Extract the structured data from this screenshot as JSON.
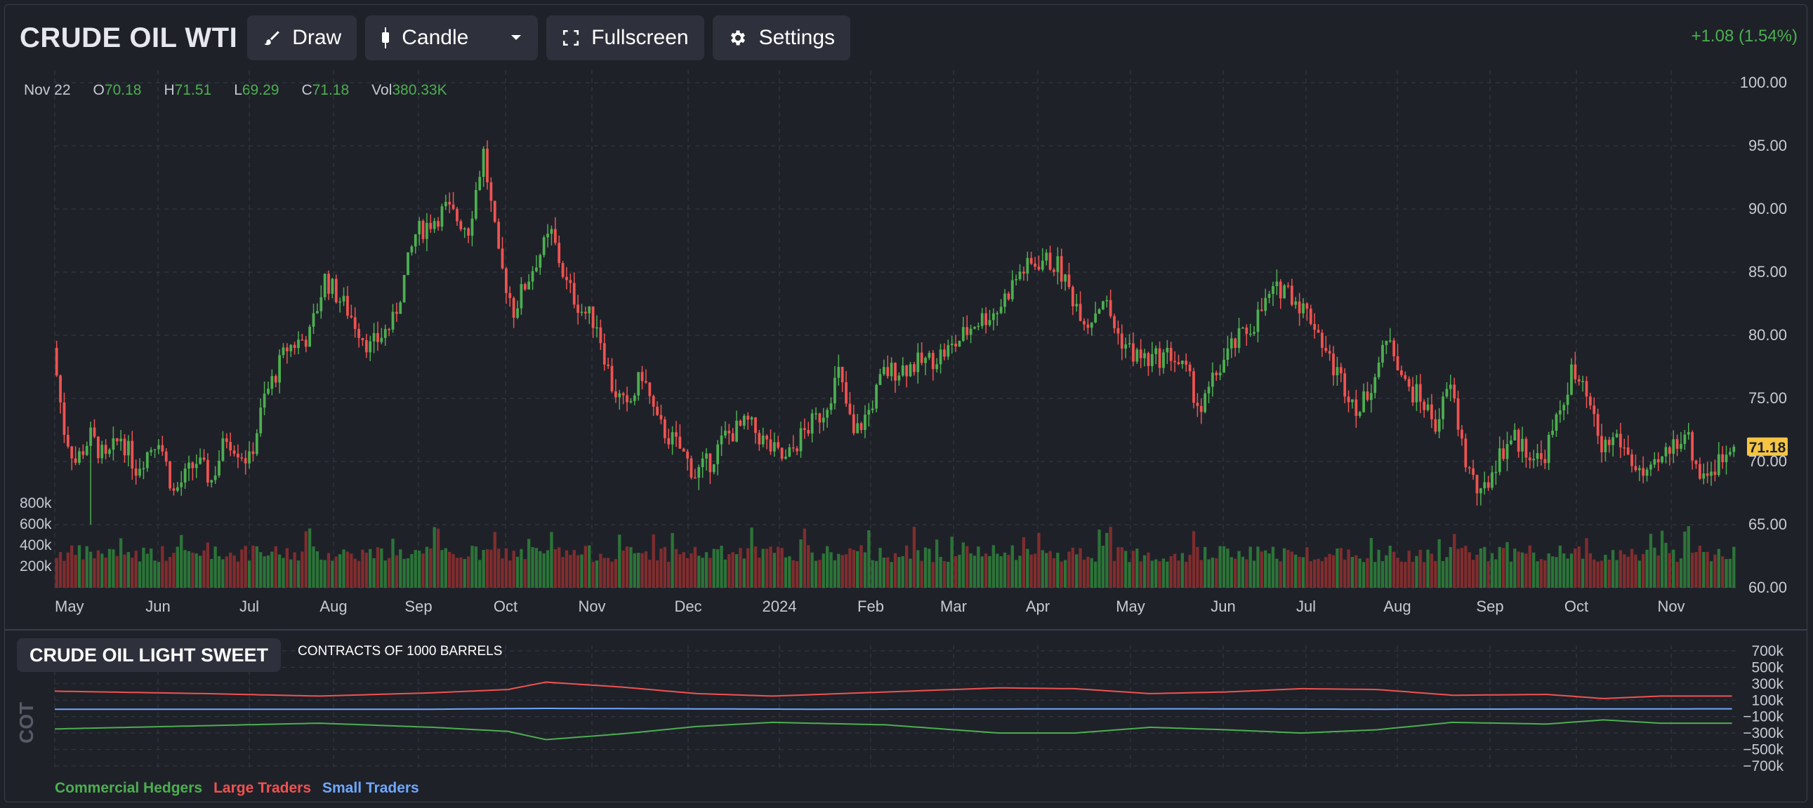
{
  "header": {
    "title": "CRUDE OIL WTI",
    "draw_label": "Draw",
    "chart_type_label": "Candle",
    "fullscreen_label": "Fullscreen",
    "settings_label": "Settings",
    "change": "+1.08 (1.54%)"
  },
  "ohlc": {
    "date": "Nov 22",
    "o_label": "O",
    "o": "70.18",
    "h_label": "H",
    "h": "71.51",
    "l_label": "L",
    "l": "69.29",
    "c_label": "C",
    "c": "71.18",
    "vol_label": "Vol",
    "vol": "380.33K"
  },
  "colors": {
    "up": "#4caf50",
    "down": "#ef5350",
    "bg": "#1f2129",
    "grid": "#363a45",
    "last_price_bg": "#f5c542",
    "small": "#6ea8fe"
  },
  "cot": {
    "title": "CRUDE OIL LIGHT SWEET",
    "subtitle": "CONTRACTS OF 1000 BARRELS",
    "side_label": "COT",
    "legend": [
      "Commercial Hedgers",
      "Large Traders",
      "Small Traders"
    ]
  },
  "chart_data": [
    {
      "type": "candlestick",
      "title": "CRUDE OIL WTI",
      "ylim": [
        60,
        100
      ],
      "y_ticks": [
        "100.00",
        "95.00",
        "90.00",
        "85.00",
        "80.00",
        "75.00",
        "70.00",
        "65.00",
        "60.00"
      ],
      "x_ticks": [
        "May",
        "Jun",
        "Jul",
        "Aug",
        "Sep",
        "Oct",
        "Nov",
        "Dec",
        "2024",
        "Feb",
        "Mar",
        "Apr",
        "May",
        "Jun",
        "Jul",
        "Aug",
        "Sep",
        "Oct",
        "Nov"
      ],
      "last_price": "71.18",
      "price_path": [
        [
          0,
          79
        ],
        [
          3,
          72.5
        ],
        [
          6,
          70
        ],
        [
          10,
          72
        ],
        [
          14,
          70
        ],
        [
          18,
          72
        ],
        [
          22,
          69.5
        ],
        [
          28,
          72
        ],
        [
          32,
          67.5
        ],
        [
          38,
          70
        ],
        [
          42,
          68.5
        ],
        [
          46,
          72
        ],
        [
          52,
          70
        ],
        [
          56,
          75
        ],
        [
          62,
          79
        ],
        [
          68,
          80
        ],
        [
          72,
          84.5
        ],
        [
          78,
          82
        ],
        [
          84,
          79
        ],
        [
          90,
          81
        ],
        [
          96,
          88
        ],
        [
          104,
          90
        ],
        [
          110,
          88.5
        ],
        [
          114,
          94.5
        ],
        [
          118,
          86
        ],
        [
          122,
          82
        ],
        [
          128,
          86
        ],
        [
          132,
          88
        ],
        [
          136,
          84
        ],
        [
          140,
          82
        ],
        [
          144,
          81
        ],
        [
          148,
          76
        ],
        [
          152,
          74
        ],
        [
          156,
          77
        ],
        [
          160,
          73
        ],
        [
          166,
          71
        ],
        [
          170,
          69
        ],
        [
          174,
          70
        ],
        [
          178,
          72
        ],
        [
          184,
          73
        ],
        [
          190,
          71
        ],
        [
          194,
          70
        ],
        [
          198,
          72
        ],
        [
          204,
          74
        ],
        [
          208,
          77
        ],
        [
          212,
          72
        ],
        [
          216,
          74
        ],
        [
          220,
          77
        ],
        [
          226,
          77.5
        ],
        [
          232,
          78
        ],
        [
          238,
          79
        ],
        [
          244,
          81
        ],
        [
          250,
          82
        ],
        [
          256,
          85
        ],
        [
          262,
          86
        ],
        [
          266,
          85.5
        ],
        [
          270,
          83
        ],
        [
          274,
          81
        ],
        [
          278,
          83
        ],
        [
          282,
          80
        ],
        [
          286,
          78.5
        ],
        [
          290,
          78
        ],
        [
          296,
          78.5
        ],
        [
          300,
          77
        ],
        [
          304,
          74
        ],
        [
          308,
          77
        ],
        [
          312,
          79
        ],
        [
          318,
          81
        ],
        [
          322,
          83
        ],
        [
          326,
          84
        ],
        [
          330,
          82.5
        ],
        [
          334,
          81
        ],
        [
          338,
          78
        ],
        [
          342,
          76
        ],
        [
          346,
          74
        ],
        [
          350,
          77
        ],
        [
          354,
          80
        ],
        [
          358,
          76
        ],
        [
          362,
          75
        ],
        [
          366,
          73
        ],
        [
          370,
          76
        ],
        [
          374,
          70
        ],
        [
          378,
          67
        ],
        [
          382,
          70
        ],
        [
          386,
          72
        ],
        [
          390,
          71
        ],
        [
          394,
          70
        ],
        [
          398,
          73
        ],
        [
          402,
          77
        ],
        [
          406,
          75
        ],
        [
          410,
          71
        ],
        [
          414,
          72
        ],
        [
          418,
          70
        ],
        [
          422,
          68.5
        ],
        [
          428,
          71
        ],
        [
          432,
          72.5
        ],
        [
          436,
          69
        ],
        [
          440,
          69.5
        ],
        [
          444,
          71.18
        ]
      ],
      "volume_ylim": [
        0,
        800000
      ],
      "volume_ticks": [
        "800k",
        "600k",
        "400k",
        "200k"
      ],
      "bar_count": 445
    },
    {
      "type": "line",
      "title": "CRUDE OIL LIGHT SWEET",
      "ylim": [
        -700000,
        700000
      ],
      "y_ticks": [
        "700k",
        "500k",
        "300k",
        "100k",
        "−100k",
        "−300k",
        "−500k",
        "−700k"
      ],
      "series": [
        {
          "name": "Large Traders",
          "path": [
            [
              0,
              210000
            ],
            [
              40,
              180000
            ],
            [
              70,
              150000
            ],
            [
              100,
              190000
            ],
            [
              120,
              230000
            ],
            [
              130,
              320000
            ],
            [
              150,
              260000
            ],
            [
              170,
              180000
            ],
            [
              190,
              150000
            ],
            [
              220,
              200000
            ],
            [
              250,
              250000
            ],
            [
              270,
              240000
            ],
            [
              290,
              180000
            ],
            [
              310,
              200000
            ],
            [
              330,
              240000
            ],
            [
              350,
              230000
            ],
            [
              370,
              160000
            ],
            [
              395,
              170000
            ],
            [
              410,
              120000
            ],
            [
              425,
              150000
            ],
            [
              444,
              150000
            ]
          ]
        },
        {
          "name": "Small Traders",
          "path": [
            [
              0,
              -10000
            ],
            [
              100,
              -10000
            ],
            [
              130,
              0
            ],
            [
              200,
              -10000
            ],
            [
              300,
              -5000
            ],
            [
              350,
              -10000
            ],
            [
              444,
              -5000
            ]
          ]
        },
        {
          "name": "Commercial Hedgers",
          "path": [
            [
              0,
              -250000
            ],
            [
              40,
              -210000
            ],
            [
              70,
              -180000
            ],
            [
              100,
              -230000
            ],
            [
              120,
              -280000
            ],
            [
              130,
              -380000
            ],
            [
              150,
              -310000
            ],
            [
              170,
              -220000
            ],
            [
              190,
              -170000
            ],
            [
              220,
              -200000
            ],
            [
              250,
              -300000
            ],
            [
              270,
              -300000
            ],
            [
              290,
              -230000
            ],
            [
              310,
              -260000
            ],
            [
              330,
              -300000
            ],
            [
              350,
              -260000
            ],
            [
              370,
              -170000
            ],
            [
              395,
              -190000
            ],
            [
              410,
              -140000
            ],
            [
              425,
              -180000
            ],
            [
              444,
              -180000
            ]
          ]
        }
      ]
    }
  ]
}
